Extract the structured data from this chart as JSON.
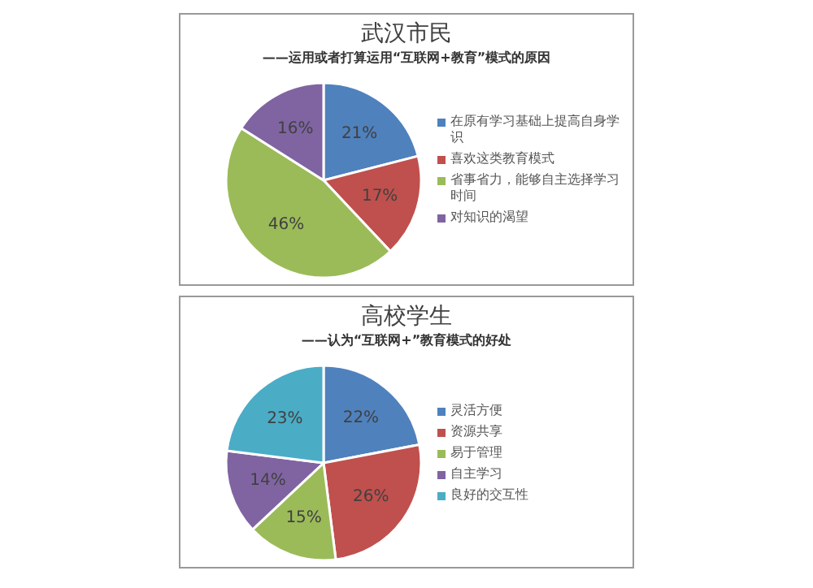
{
  "chart_data": [
    {
      "type": "pie",
      "title": "武汉市民",
      "subtitle": "——运用或者打算运用“互联网+教育”模式的原因",
      "categories": [
        "在原有学习基础上提高自身学识",
        "喜欢这类教育模式",
        "省事省力，能够自主选择学习时间",
        "对知识的渴望"
      ],
      "values": [
        21,
        17,
        46,
        16
      ],
      "value_labels": [
        "21%",
        "17%",
        "46%",
        "16%"
      ],
      "colors": [
        "#4f81bd",
        "#c0504d",
        "#9bbb59",
        "#8064a2"
      ],
      "legend": "right"
    },
    {
      "type": "pie",
      "title": "高校学生",
      "subtitle": "——认为“互联网+”教育模式的好处",
      "categories": [
        "灵活方便",
        "资源共享",
        "易于管理",
        "自主学习",
        "良好的交互性"
      ],
      "values": [
        22,
        26,
        15,
        14,
        23
      ],
      "value_labels": [
        "22%",
        "26%",
        "15%",
        "14%",
        "23%"
      ],
      "colors": [
        "#4f81bd",
        "#c0504d",
        "#9bbb59",
        "#8064a2",
        "#4bacc6"
      ],
      "legend": "right"
    }
  ]
}
